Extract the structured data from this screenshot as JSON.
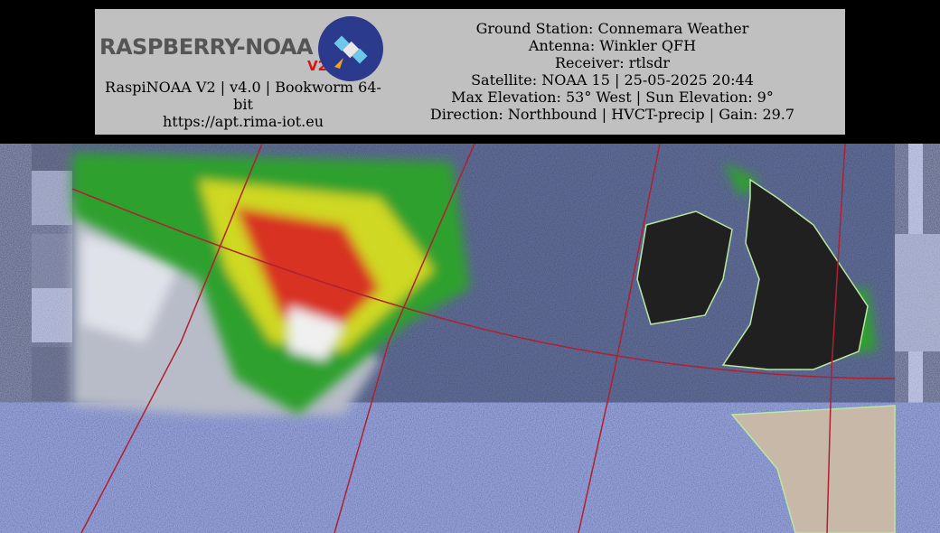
{
  "header": {
    "logo": {
      "name": "RASPBERRY-NOAA",
      "version": "V2"
    },
    "left_lines": [
      "RaspiNOAA V2 | v4.0 | Bookworm 64-bit",
      "https://apt.rima-iot.eu"
    ],
    "right_lines": [
      "Ground Station: Connemara Weather",
      "Antenna: Winkler QFH",
      "Receiver: rtlsdr",
      "Satellite: NOAA 15 | 25-05-2025 20:44",
      "Max Elevation: 53° West | Sun Elevation: 9°",
      "Direction: Northbound | HVCT-precip | Gain: 29.7"
    ]
  }
}
